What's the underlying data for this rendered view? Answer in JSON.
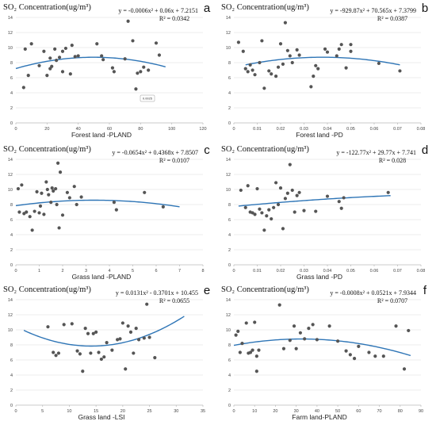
{
  "chart_data": [
    {
      "type": "scatter",
      "letter": "a",
      "title": "SO₂ Concentration(ug/m³)",
      "equation": "y = -0.0006x² + 0.06x + 7.2151",
      "r2": "R² = 0.0342",
      "xlabel": "Forest land -PLAND",
      "xlim": [
        0,
        120
      ],
      "ylim": [
        0,
        14
      ],
      "xticks": [
        0,
        20,
        40,
        60,
        80,
        100,
        120
      ],
      "xtick_labels": [
        "0",
        "20",
        "40",
        "60",
        "80",
        "100",
        "120"
      ],
      "yticks": [
        0,
        2,
        4,
        6,
        8,
        10,
        12,
        14
      ],
      "trend": {
        "coeffs": [
          -0.0006,
          0.06,
          7.2151
        ],
        "range": [
          0,
          96
        ]
      },
      "inset_label": "0.0025",
      "points": [
        [
          5,
          4.7
        ],
        [
          6,
          9.8
        ],
        [
          8,
          6.3
        ],
        [
          10,
          10.5
        ],
        [
          15,
          7.6
        ],
        [
          18,
          9.5
        ],
        [
          20,
          6.3
        ],
        [
          22,
          8.6
        ],
        [
          22,
          7.2
        ],
        [
          23,
          7.5
        ],
        [
          25,
          9.8
        ],
        [
          26,
          8.3
        ],
        [
          28,
          8.7
        ],
        [
          30,
          9.5
        ],
        [
          30,
          6.8
        ],
        [
          32,
          9.9
        ],
        [
          35,
          6.5
        ],
        [
          36,
          10.3
        ],
        [
          38,
          8.8
        ],
        [
          40,
          8.9
        ],
        [
          52,
          10.5
        ],
        [
          55,
          8.9
        ],
        [
          56,
          8.4
        ],
        [
          62,
          7.3
        ],
        [
          63,
          6.8
        ],
        [
          70,
          8.5
        ],
        [
          72,
          13.5
        ],
        [
          75,
          10.9
        ],
        [
          77,
          4.5
        ],
        [
          78,
          6.6
        ],
        [
          80,
          6.8
        ],
        [
          82,
          7.4
        ],
        [
          85,
          7.0
        ],
        [
          90,
          10.6
        ],
        [
          92,
          9.0
        ]
      ]
    },
    {
      "type": "scatter",
      "letter": "b",
      "title": "SO₂ Concentration(ug/m³)",
      "equation": "y = -929.87x² + 70.565x + 7.3799",
      "r2": "R² = 0.0387",
      "xlabel": "Forest land -PD",
      "xlim": [
        0,
        0.08
      ],
      "ylim": [
        0,
        14
      ],
      "xticks": [
        0,
        0.01,
        0.02,
        0.03,
        0.04,
        0.05,
        0.06,
        0.07,
        0.08
      ],
      "xtick_labels": [
        "0",
        "0.01",
        "0.02",
        "0.03",
        "0.04",
        "0.05",
        "0.06",
        "0.07",
        "0.08"
      ],
      "yticks": [
        0,
        2,
        4,
        6,
        8,
        10,
        12,
        14
      ],
      "trend": {
        "coeffs": [
          -929.87,
          70.565,
          7.3799
        ],
        "range": [
          0.005,
          0.071
        ]
      },
      "points": [
        [
          0.002,
          10.7
        ],
        [
          0.004,
          9.5
        ],
        [
          0.005,
          7.2
        ],
        [
          0.006,
          6.8
        ],
        [
          0.007,
          7.7
        ],
        [
          0.008,
          7.0
        ],
        [
          0.009,
          6.4
        ],
        [
          0.011,
          8.0
        ],
        [
          0.012,
          10.9
        ],
        [
          0.013,
          4.6
        ],
        [
          0.015,
          6.9
        ],
        [
          0.016,
          6.5
        ],
        [
          0.018,
          6.2
        ],
        [
          0.019,
          7.4
        ],
        [
          0.02,
          10.5
        ],
        [
          0.021,
          7.8
        ],
        [
          0.022,
          13.3
        ],
        [
          0.023,
          9.6
        ],
        [
          0.024,
          8.9
        ],
        [
          0.025,
          8.0
        ],
        [
          0.027,
          9.7
        ],
        [
          0.028,
          9.0
        ],
        [
          0.033,
          4.8
        ],
        [
          0.034,
          6.2
        ],
        [
          0.035,
          7.6
        ],
        [
          0.036,
          7.2
        ],
        [
          0.039,
          9.8
        ],
        [
          0.04,
          9.4
        ],
        [
          0.044,
          8.9
        ],
        [
          0.045,
          9.8
        ],
        [
          0.046,
          10.4
        ],
        [
          0.048,
          7.3
        ],
        [
          0.05,
          10.4
        ],
        [
          0.05,
          9.5
        ],
        [
          0.062,
          7.9
        ],
        [
          0.071,
          6.9
        ]
      ]
    },
    {
      "type": "scatter",
      "letter": "c",
      "title": "SO₂ Concentration(ug/m³)",
      "equation": "y = -0.0654x² + 0.4368x + 7.8507",
      "r2": "R² = 0.0107",
      "xlabel": "Grass land -PLAND",
      "xlim": [
        0,
        8
      ],
      "ylim": [
        0,
        14
      ],
      "xticks": [
        0,
        1,
        2,
        3,
        4,
        5,
        6,
        7,
        8
      ],
      "xtick_labels": [
        "0",
        "1",
        "2",
        "3",
        "4",
        "5",
        "6",
        "7",
        "8"
      ],
      "yticks": [
        0,
        2,
        4,
        6,
        8,
        10,
        12,
        14
      ],
      "trend": {
        "coeffs": [
          -0.0654,
          0.4368,
          7.8507
        ],
        "range": [
          0,
          7
        ]
      },
      "points": [
        [
          0.1,
          10.1
        ],
        [
          0.15,
          7.0
        ],
        [
          0.25,
          10.6
        ],
        [
          0.35,
          6.8
        ],
        [
          0.45,
          7.0
        ],
        [
          0.6,
          6.4
        ],
        [
          0.7,
          4.6
        ],
        [
          0.8,
          7.1
        ],
        [
          0.9,
          9.7
        ],
        [
          1.0,
          6.9
        ],
        [
          1.05,
          7.8
        ],
        [
          1.1,
          9.5
        ],
        [
          1.2,
          6.7
        ],
        [
          1.3,
          11.0
        ],
        [
          1.35,
          10.0
        ],
        [
          1.4,
          9.3
        ],
        [
          1.5,
          8.3
        ],
        [
          1.55,
          10.2
        ],
        [
          1.6,
          9.8
        ],
        [
          1.7,
          10.1
        ],
        [
          1.75,
          8.0
        ],
        [
          1.8,
          13.5
        ],
        [
          1.85,
          4.9
        ],
        [
          1.9,
          12.3
        ],
        [
          2.0,
          6.6
        ],
        [
          2.2,
          9.6
        ],
        [
          2.3,
          8.9
        ],
        [
          2.5,
          10.4
        ],
        [
          2.6,
          8.0
        ],
        [
          2.8,
          9.0
        ],
        [
          4.2,
          8.3
        ],
        [
          4.3,
          7.3
        ],
        [
          5.5,
          9.6
        ],
        [
          6.3,
          7.7
        ]
      ]
    },
    {
      "type": "scatter",
      "letter": "d",
      "title": "SO₂ Concentration(ug/m³)",
      "equation": "y = -122.77x² + 29.77x + 7.741",
      "r2": "R² = 0.028",
      "xlabel": "Grass land -PD",
      "xlim": [
        0,
        0.08
      ],
      "ylim": [
        0,
        14
      ],
      "xticks": [
        0,
        0.01,
        0.02,
        0.03,
        0.04,
        0.05,
        0.06,
        0.07,
        0.08
      ],
      "xtick_labels": [
        "0",
        "0.01",
        "0.02",
        "0.03",
        "0.04",
        "0.05",
        "0.06",
        "0.07",
        "0.08"
      ],
      "yticks": [
        0,
        2,
        4,
        6,
        8,
        10,
        12,
        14
      ],
      "trend": {
        "coeffs": [
          -122.77,
          29.77,
          7.741
        ],
        "range": [
          0.002,
          0.067
        ]
      },
      "points": [
        [
          0.003,
          9.9
        ],
        [
          0.005,
          7.6
        ],
        [
          0.006,
          10.5
        ],
        [
          0.007,
          7.0
        ],
        [
          0.008,
          6.9
        ],
        [
          0.009,
          6.7
        ],
        [
          0.01,
          10.1
        ],
        [
          0.011,
          7.4
        ],
        [
          0.012,
          6.9
        ],
        [
          0.013,
          4.6
        ],
        [
          0.014,
          6.5
        ],
        [
          0.015,
          7.3
        ],
        [
          0.016,
          6.1
        ],
        [
          0.017,
          7.6
        ],
        [
          0.018,
          10.9
        ],
        [
          0.019,
          8.0
        ],
        [
          0.02,
          10.2
        ],
        [
          0.021,
          4.8
        ],
        [
          0.022,
          8.8
        ],
        [
          0.023,
          9.5
        ],
        [
          0.024,
          13.3
        ],
        [
          0.025,
          9.9
        ],
        [
          0.026,
          7.0
        ],
        [
          0.027,
          9.2
        ],
        [
          0.028,
          9.6
        ],
        [
          0.03,
          7.2
        ],
        [
          0.035,
          7.1
        ],
        [
          0.04,
          9.1
        ],
        [
          0.045,
          8.4
        ],
        [
          0.046,
          7.5
        ],
        [
          0.047,
          8.9
        ],
        [
          0.066,
          9.6
        ]
      ]
    },
    {
      "type": "scatter",
      "letter": "e",
      "title": "SO₂ Concentration(ug/m³)",
      "equation": "y = 0.0131x² - 0.3701x + 10.455",
      "r2": "R² = 0.0655",
      "xlabel": "Grass land -LSI",
      "xlim": [
        0,
        35
      ],
      "ylim": [
        0,
        14
      ],
      "xticks": [
        0,
        5,
        10,
        15,
        20,
        25,
        30,
        35
      ],
      "xtick_labels": [
        "0",
        "5",
        "10",
        "15",
        "20",
        "25",
        "30",
        "35"
      ],
      "yticks": [
        0,
        2,
        4,
        6,
        8,
        10,
        12,
        14
      ],
      "trend": {
        "coeffs": [
          0.0131,
          -0.3701,
          10.455
        ],
        "range": [
          1.5,
          31.5
        ]
      },
      "points": [
        [
          6,
          10.4
        ],
        [
          7,
          7.0
        ],
        [
          7.5,
          6.6
        ],
        [
          8,
          6.9
        ],
        [
          9,
          10.7
        ],
        [
          10.5,
          10.8
        ],
        [
          11.5,
          7.2
        ],
        [
          12,
          6.8
        ],
        [
          12.5,
          4.5
        ],
        [
          13,
          10.2
        ],
        [
          13.5,
          9.5
        ],
        [
          14,
          6.9
        ],
        [
          14.5,
          9.5
        ],
        [
          15,
          9.7
        ],
        [
          15.5,
          7.0
        ],
        [
          16,
          6.1
        ],
        [
          16.5,
          6.4
        ],
        [
          17,
          8.3
        ],
        [
          18,
          7.3
        ],
        [
          19,
          8.7
        ],
        [
          19.5,
          8.8
        ],
        [
          20,
          10.9
        ],
        [
          20.5,
          4.8
        ],
        [
          21,
          10.5
        ],
        [
          21.5,
          9.7
        ],
        [
          22,
          6.9
        ],
        [
          22.5,
          10.2
        ],
        [
          23,
          8.7
        ],
        [
          24,
          8.9
        ],
        [
          24.5,
          13.4
        ],
        [
          25,
          9.0
        ],
        [
          26,
          6.3
        ]
      ]
    },
    {
      "type": "scatter",
      "letter": "f",
      "title": "SO₂ Concentration(ug/m³)",
      "equation": "y = -0.0008x² + 0.0521x + 7.9344",
      "r2": "R² = 0.0707",
      "xlabel": "Farm land-PLAND",
      "xlim": [
        0,
        90
      ],
      "ylim": [
        0,
        14
      ],
      "xticks": [
        0,
        10,
        20,
        30,
        40,
        50,
        60,
        70,
        80,
        90
      ],
      "xtick_labels": [
        "0",
        "10",
        "20",
        "30",
        "40",
        "50",
        "60",
        "70",
        "80",
        "90"
      ],
      "yticks": [
        0,
        2,
        4,
        6,
        8,
        10,
        12,
        14
      ],
      "trend": {
        "coeffs": [
          -0.0008,
          0.0521,
          7.9344
        ],
        "range": [
          0,
          85
        ]
      },
      "points": [
        [
          1,
          9.3
        ],
        [
          2,
          9.8
        ],
        [
          3,
          7.0
        ],
        [
          4,
          8.2
        ],
        [
          6,
          10.9
        ],
        [
          7,
          6.9
        ],
        [
          8,
          7.0
        ],
        [
          9,
          7.3
        ],
        [
          10,
          11.0
        ],
        [
          11,
          6.5
        ],
        [
          11,
          4.5
        ],
        [
          12,
          7.3
        ],
        [
          22,
          13.3
        ],
        [
          24,
          7.5
        ],
        [
          27,
          8.6
        ],
        [
          29,
          10.5
        ],
        [
          30,
          7.5
        ],
        [
          32,
          9.6
        ],
        [
          34,
          8.8
        ],
        [
          36,
          10.2
        ],
        [
          38,
          10.7
        ],
        [
          40,
          8.7
        ],
        [
          46,
          10.5
        ],
        [
          50,
          8.5
        ],
        [
          54,
          7.2
        ],
        [
          56,
          6.7
        ],
        [
          58,
          6.2
        ],
        [
          60,
          7.8
        ],
        [
          65,
          7.0
        ],
        [
          68,
          6.5
        ],
        [
          72,
          6.5
        ],
        [
          78,
          10.5
        ],
        [
          82,
          4.8
        ],
        [
          84,
          9.9
        ]
      ]
    }
  ],
  "style": {
    "point_color": "#555555",
    "trend_color": "#2e75b6"
  }
}
